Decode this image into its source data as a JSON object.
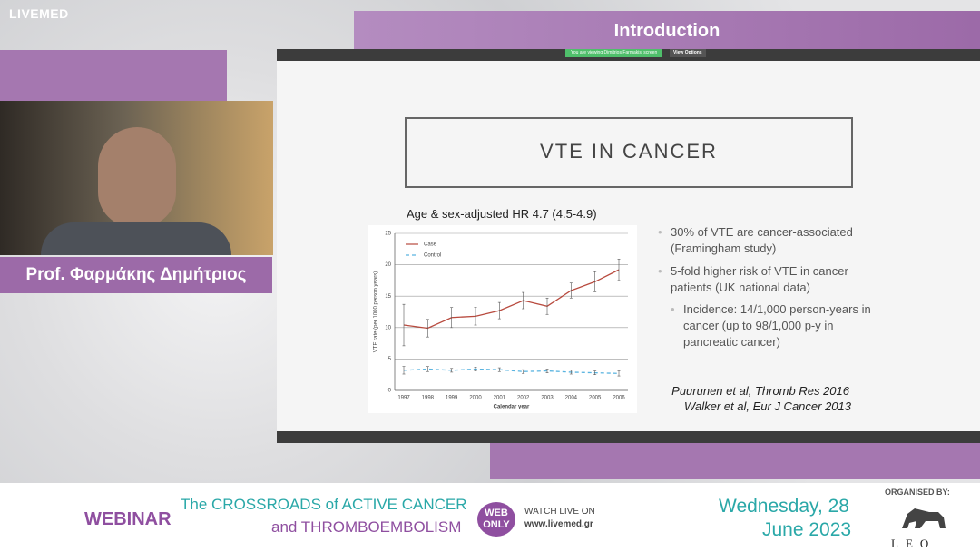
{
  "header": {
    "brand": "LIVEMED",
    "slide_title": "Introduction"
  },
  "speaker": {
    "name": "Prof. Φαρμάκης Δημήτριος"
  },
  "viewer": {
    "notice": "You are viewing Dimitrios Farmakis' screen",
    "view_options": "View Options"
  },
  "slide": {
    "title": "VTE IN CANCER",
    "bullets": [
      "30% of VTE are cancer-associated (Framingham study)",
      "5-fold higher risk of VTE in cancer patients (UK national data)"
    ],
    "sub_bullets": [
      "Incidence: 14/1,000 person-years in cancer (up to 98/1,000 p-y in pancreatic cancer)"
    ],
    "references": [
      "Puurunen et al, Thromb Res 2016",
      "Walker et al, Eur J Cancer 2013"
    ]
  },
  "chart_data": {
    "type": "line",
    "title": "Age & sex-adjusted HR 4.7 (4.5-4.9)",
    "x_label": "Calendar year",
    "y_label": "VTE rate (per 1000 person years)",
    "categories": [
      "1997",
      "1998",
      "1999",
      "2000",
      "2001",
      "2002",
      "2003",
      "2004",
      "2005",
      "2006"
    ],
    "series": [
      {
        "name": "Case",
        "color": "#b84a3e",
        "dashed": false,
        "values": [
          10.4,
          9.9,
          11.6,
          11.8,
          12.7,
          14.3,
          13.4,
          15.9,
          17.3,
          19.2
        ],
        "errors": [
          3.3,
          1.4,
          1.6,
          1.4,
          1.3,
          1.3,
          1.3,
          1.2,
          1.6,
          1.7
        ]
      },
      {
        "name": "Control",
        "color": "#5ab4e0",
        "dashed": true,
        "values": [
          3.2,
          3.4,
          3.2,
          3.4,
          3.3,
          3.0,
          3.1,
          2.9,
          2.8,
          2.7
        ],
        "errors": [
          0.6,
          0.4,
          0.3,
          0.3,
          0.3,
          0.3,
          0.3,
          0.3,
          0.3,
          0.4
        ]
      }
    ],
    "ylim": [
      0,
      25
    ],
    "yticks": [
      0,
      5,
      10,
      15,
      20,
      25
    ],
    "grid": true,
    "legend": "upper left"
  },
  "footer": {
    "webinar": "WEBINAR",
    "theme_line1": "The CROSSROADS of ACTIVE CANCER",
    "theme_line2": "and THROMBOEMBOLISM",
    "badge": "WEB ONLY",
    "watch": "WATCH LIVE ON",
    "site": "www.livemed.gr",
    "date_line1": "Wednesday, 28",
    "date_line2": "June 2023",
    "organised_by": "ORGANISED BY:",
    "organiser": "LEO"
  }
}
